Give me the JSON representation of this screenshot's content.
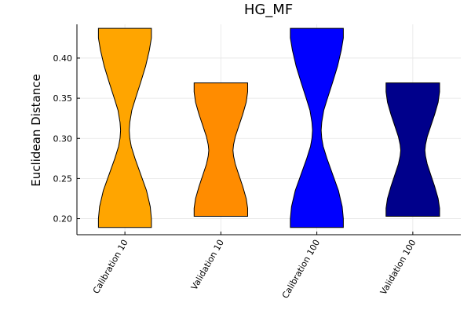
{
  "chart_data": {
    "type": "violin",
    "title": "HG_MF",
    "xlabel": "",
    "ylabel": "Euclidean Distance",
    "ylim": [
      0.18,
      0.442
    ],
    "yticks": [
      0.2,
      0.25,
      0.3,
      0.35,
      0.4
    ],
    "ytick_labels": [
      "0.20",
      "0.25",
      "0.30",
      "0.35",
      "0.40"
    ],
    "grid": true,
    "legend": "none",
    "categories": [
      "Calibration 10",
      "Validation 10",
      "Calibration 100",
      "Validation 100"
    ],
    "series": [
      {
        "category": "Calibration 10",
        "color": "#ffa500",
        "min": 0.189,
        "max": 0.437,
        "profile": [
          [
            0.189,
            0.92
          ],
          [
            0.2,
            0.92
          ],
          [
            0.215,
            0.88
          ],
          [
            0.235,
            0.75
          ],
          [
            0.255,
            0.55
          ],
          [
            0.275,
            0.35
          ],
          [
            0.29,
            0.22
          ],
          [
            0.3,
            0.17
          ],
          [
            0.31,
            0.15
          ],
          [
            0.32,
            0.17
          ],
          [
            0.335,
            0.24
          ],
          [
            0.35,
            0.37
          ],
          [
            0.37,
            0.55
          ],
          [
            0.39,
            0.72
          ],
          [
            0.41,
            0.85
          ],
          [
            0.425,
            0.92
          ],
          [
            0.437,
            0.92
          ]
        ]
      },
      {
        "category": "Validation 10",
        "color": "#ff8c00",
        "min": 0.203,
        "max": 0.369,
        "profile": [
          [
            0.203,
            0.93
          ],
          [
            0.213,
            0.93
          ],
          [
            0.225,
            0.88
          ],
          [
            0.24,
            0.76
          ],
          [
            0.255,
            0.62
          ],
          [
            0.268,
            0.5
          ],
          [
            0.278,
            0.44
          ],
          [
            0.285,
            0.42
          ],
          [
            0.292,
            0.44
          ],
          [
            0.302,
            0.5
          ],
          [
            0.315,
            0.62
          ],
          [
            0.33,
            0.76
          ],
          [
            0.345,
            0.88
          ],
          [
            0.358,
            0.93
          ],
          [
            0.369,
            0.93
          ]
        ]
      },
      {
        "category": "Calibration 100",
        "color": "#0000ff",
        "min": 0.189,
        "max": 0.437,
        "profile": [
          [
            0.189,
            0.92
          ],
          [
            0.2,
            0.92
          ],
          [
            0.215,
            0.88
          ],
          [
            0.235,
            0.75
          ],
          [
            0.255,
            0.55
          ],
          [
            0.275,
            0.35
          ],
          [
            0.29,
            0.22
          ],
          [
            0.3,
            0.17
          ],
          [
            0.31,
            0.15
          ],
          [
            0.32,
            0.17
          ],
          [
            0.335,
            0.24
          ],
          [
            0.35,
            0.37
          ],
          [
            0.37,
            0.55
          ],
          [
            0.39,
            0.72
          ],
          [
            0.41,
            0.85
          ],
          [
            0.425,
            0.92
          ],
          [
            0.437,
            0.92
          ]
        ]
      },
      {
        "category": "Validation 100",
        "color": "#00008b",
        "min": 0.203,
        "max": 0.369,
        "profile": [
          [
            0.203,
            0.93
          ],
          [
            0.213,
            0.93
          ],
          [
            0.225,
            0.88
          ],
          [
            0.24,
            0.76
          ],
          [
            0.255,
            0.62
          ],
          [
            0.268,
            0.5
          ],
          [
            0.278,
            0.44
          ],
          [
            0.285,
            0.42
          ],
          [
            0.292,
            0.44
          ],
          [
            0.302,
            0.5
          ],
          [
            0.315,
            0.62
          ],
          [
            0.33,
            0.76
          ],
          [
            0.345,
            0.88
          ],
          [
            0.358,
            0.93
          ],
          [
            0.369,
            0.93
          ]
        ]
      }
    ]
  }
}
